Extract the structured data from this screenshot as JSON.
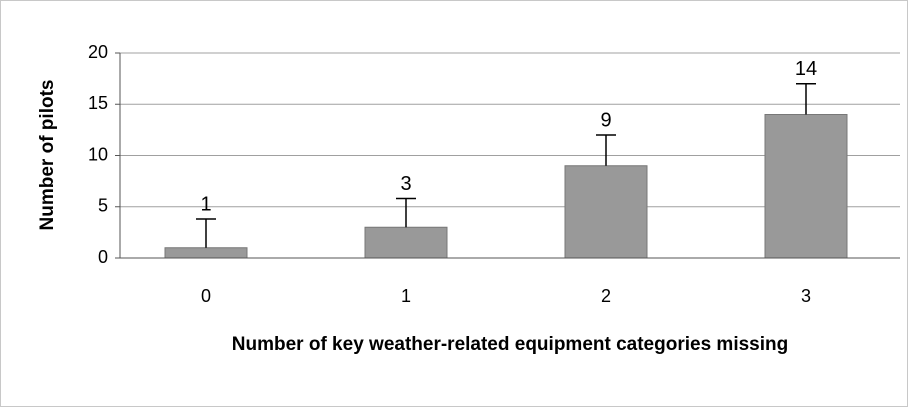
{
  "chart_data": {
    "type": "bar",
    "xlabel": "Number of key weather-related equipment categories missing",
    "ylabel": "Number of pilots",
    "categories": [
      "0",
      "1",
      "2",
      "3"
    ],
    "values": [
      1,
      3,
      9,
      14
    ],
    "errors": [
      2.8,
      2.8,
      3,
      3
    ],
    "color": "#999999",
    "ylim": [
      0,
      20
    ],
    "yticks": [
      0,
      5,
      10,
      15,
      20
    ],
    "grid": true
  }
}
